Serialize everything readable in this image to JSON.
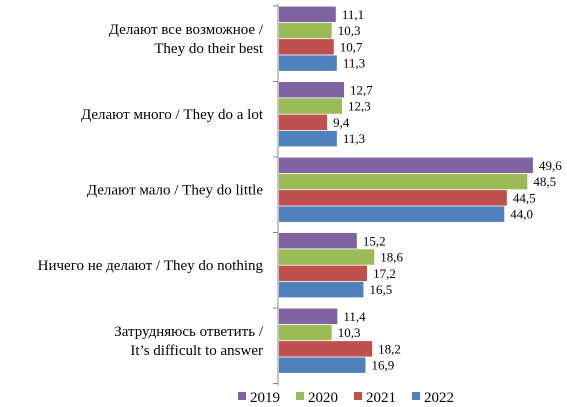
{
  "chart_data": {
    "type": "bar",
    "orientation": "horizontal",
    "categories": [
      [
        "Делают все возможное /",
        "They do their best"
      ],
      [
        "Делают много / They do a lot"
      ],
      [
        "Делают мало / They do little"
      ],
      [
        "Ничего не делают / They do nothing"
      ],
      [
        "Затрудняюсь ответить /",
        "It’s difficult to answer"
      ]
    ],
    "series": [
      {
        "name": "2019",
        "color": "#8064a2",
        "values": [
          11.1,
          12.7,
          49.6,
          15.2,
          11.4
        ],
        "labels": [
          "11,1",
          "12,7",
          "49,6",
          "15,2",
          "11,4"
        ]
      },
      {
        "name": "2020",
        "color": "#9bbb59",
        "values": [
          10.3,
          12.3,
          48.5,
          18.6,
          10.3
        ],
        "labels": [
          "10,3",
          "12,3",
          "48,5",
          "18,6",
          "10,3"
        ]
      },
      {
        "name": "2021",
        "color": "#c0504d",
        "values": [
          10.7,
          9.4,
          44.5,
          17.2,
          18.2
        ],
        "labels": [
          "10,7",
          "9,4",
          "44,5",
          "17,2",
          "18,2"
        ]
      },
      {
        "name": "2022",
        "color": "#4f81bd",
        "values": [
          11.3,
          11.3,
          44.0,
          16.5,
          16.9
        ],
        "labels": [
          "11,3",
          "11,3",
          "44,0",
          "16,5",
          "16,9"
        ]
      }
    ],
    "xlim": [
      0,
      50
    ],
    "legend_position": "bottom",
    "grid": false
  }
}
